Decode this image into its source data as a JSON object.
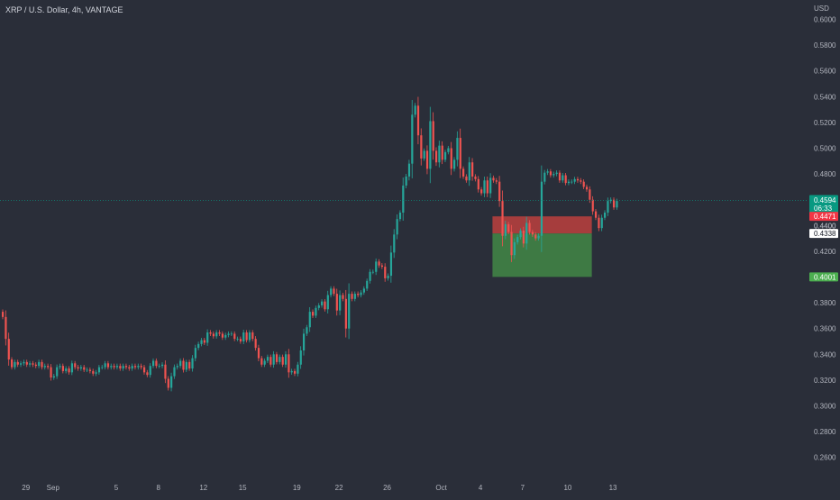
{
  "header": {
    "title": "XRP / U.S. Dollar, 4h, VANTAGE"
  },
  "chart_data": {
    "type": "candlestick",
    "title": "XRP / U.S. Dollar, 4h, VANTAGE",
    "currency": "USD",
    "y_range": [
      0.25,
      0.615
    ],
    "y_ticks": [
      "0.6000",
      "0.5800",
      "0.5600",
      "0.5400",
      "0.5200",
      "0.5000",
      "0.4800",
      "0.4400",
      "0.4200",
      "0.3800",
      "0.3600",
      "0.3400",
      "0.3200",
      "0.3000",
      "0.2800",
      "0.2600"
    ],
    "x_ticks": [
      "29",
      "Sep",
      "5",
      "8",
      "12",
      "15",
      "19",
      "22",
      "26",
      "Oct",
      "4",
      "7",
      "10",
      "13"
    ],
    "x_tick_index": [
      8,
      17,
      38,
      52,
      67,
      80,
      98,
      112,
      128,
      146,
      159,
      173,
      188,
      203
    ],
    "price_line": {
      "value": 0.4594,
      "label": "0.4594",
      "countdown": "06:33",
      "color": "#089981"
    },
    "markers": [
      {
        "label": "0.4471",
        "value": 0.4471,
        "bg": "#f23645",
        "fg": "#ffffff"
      },
      {
        "label": "0.4400",
        "value": 0.44,
        "bg": "none",
        "fg": "#b2b5be"
      },
      {
        "label": "0.4338",
        "value": 0.4338,
        "bg": "#ffffff",
        "fg": "#131722"
      },
      {
        "label": "0.4001",
        "value": 0.4001,
        "bg": "#4caf50",
        "fg": "#ffffff"
      }
    ],
    "position": {
      "type": "short",
      "stop": 0.4471,
      "entry": 0.4338,
      "target": 0.4001,
      "start_index": 163,
      "end_index": 196
    },
    "colors": {
      "up": "#26a69a",
      "down": "#ef5350",
      "background": "#2a2e39",
      "stop_zone": "#a63d3d",
      "target_zone": "#3e7a44"
    },
    "closes": [
      0.369,
      0.352,
      0.336,
      0.33,
      0.334,
      0.332,
      0.333,
      0.334,
      0.332,
      0.333,
      0.332,
      0.331,
      0.334,
      0.33,
      0.331,
      0.33,
      0.322,
      0.323,
      0.33,
      0.331,
      0.327,
      0.329,
      0.326,
      0.333,
      0.33,
      0.329,
      0.33,
      0.328,
      0.328,
      0.327,
      0.325,
      0.326,
      0.33,
      0.33,
      0.333,
      0.33,
      0.331,
      0.33,
      0.331,
      0.329,
      0.331,
      0.33,
      0.329,
      0.331,
      0.33,
      0.331,
      0.33,
      0.326,
      0.324,
      0.331,
      0.335,
      0.331,
      0.331,
      0.332,
      0.321,
      0.314,
      0.323,
      0.33,
      0.331,
      0.335,
      0.328,
      0.334,
      0.329,
      0.337,
      0.345,
      0.348,
      0.351,
      0.349,
      0.357,
      0.356,
      0.354,
      0.357,
      0.356,
      0.353,
      0.355,
      0.356,
      0.356,
      0.352,
      0.352,
      0.35,
      0.357,
      0.351,
      0.357,
      0.352,
      0.345,
      0.337,
      0.332,
      0.335,
      0.338,
      0.332,
      0.34,
      0.334,
      0.338,
      0.332,
      0.34,
      0.326,
      0.327,
      0.325,
      0.332,
      0.343,
      0.356,
      0.361,
      0.373,
      0.37,
      0.376,
      0.378,
      0.381,
      0.375,
      0.386,
      0.391,
      0.387,
      0.374,
      0.386,
      0.383,
      0.36,
      0.387,
      0.383,
      0.387,
      0.386,
      0.388,
      0.391,
      0.397,
      0.404,
      0.404,
      0.412,
      0.409,
      0.408,
      0.399,
      0.401,
      0.419,
      0.433,
      0.445,
      0.45,
      0.471,
      0.478,
      0.488,
      0.526,
      0.533,
      0.51,
      0.492,
      0.498,
      0.484,
      0.521,
      0.498,
      0.489,
      0.502,
      0.491,
      0.497,
      0.5,
      0.484,
      0.491,
      0.508,
      0.484,
      0.478,
      0.475,
      0.489,
      0.478,
      0.476,
      0.468,
      0.465,
      0.475,
      0.465,
      0.477,
      0.475,
      0.474,
      0.459,
      0.432,
      0.441,
      0.435,
      0.417,
      0.427,
      0.431,
      0.436,
      0.426,
      0.442,
      0.435,
      0.433,
      0.43,
      0.432,
      0.474,
      0.481,
      0.482,
      0.479,
      0.48,
      0.481,
      0.475,
      0.479,
      0.473,
      0.474,
      0.474,
      0.476,
      0.475,
      0.474,
      0.47,
      0.468,
      0.46,
      0.451,
      0.446,
      0.438,
      0.446,
      0.45,
      0.459,
      0.46,
      0.454,
      0.459
    ]
  }
}
